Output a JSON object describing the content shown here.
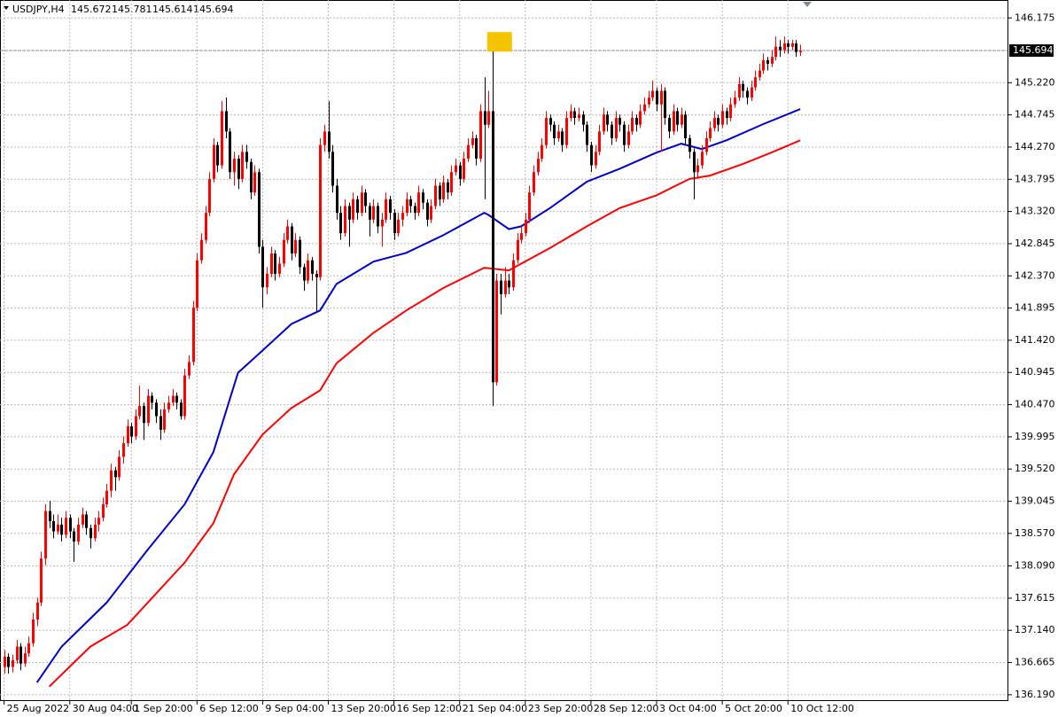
{
  "chart_data": {
    "type": "candlestick",
    "symbol": "USDJPY,H4",
    "bull_color": "#ff0000",
    "bear_color": "#000000",
    "grid": true,
    "ylim": [
      136.11,
      146.44
    ],
    "xlim": [
      -1,
      244.5
    ],
    "yticks": [
      146.175,
      {
        "value": 145.22,
        "label": "145.220"
      },
      144.745,
      {
        "value": 144.27,
        "label": "144.270"
      },
      143.795,
      {
        "value": 143.32,
        "label": "143.320"
      },
      142.845,
      {
        "value": 142.37,
        "label": "142.370"
      },
      141.895,
      {
        "value": 141.42,
        "label": "141.420"
      },
      140.945,
      {
        "value": 140.47,
        "label": "140.470"
      },
      139.995,
      {
        "value": 139.52,
        "label": "139.520"
      },
      139.045,
      {
        "value": 138.57,
        "label": "138.570"
      },
      {
        "value": 138.09,
        "label": "138.090"
      },
      137.615,
      {
        "value": 137.14,
        "label": "137.140"
      },
      136.665,
      {
        "value": 136.19,
        "label": "136.190"
      }
    ],
    "xticks": [
      {
        "value": 0,
        "label": "25 Aug 2022"
      },
      {
        "value": 16,
        "label": "30 Aug 04:00"
      },
      {
        "value": 31,
        "label": "1 Sep 20:00"
      },
      {
        "value": 47,
        "label": "6 Sep 12:00"
      },
      {
        "value": 63,
        "label": "9 Sep 04:00"
      },
      {
        "value": 79,
        "label": "13 Sep 20:00"
      },
      {
        "value": 95,
        "label": "16 Sep 12:00"
      },
      {
        "value": 111,
        "label": "21 Sep 04:00"
      },
      {
        "value": 127,
        "label": "23 Sep 20:00"
      },
      {
        "value": 143,
        "label": "28 Sep 12:00"
      },
      {
        "value": 159,
        "label": "3 Oct 04:00"
      },
      {
        "value": 175,
        "label": "5 Oct 20:00"
      },
      {
        "value": 191,
        "label": "10 Oct 12:00"
      }
    ],
    "current_price": 145.694,
    "ohlc": [
      [
        136.6,
        136.85,
        136.5,
        136.75
      ],
      [
        136.75,
        136.8,
        136.5,
        136.6
      ],
      [
        136.6,
        136.78,
        136.52,
        136.7
      ],
      [
        136.7,
        137.0,
        136.65,
        136.9
      ],
      [
        136.9,
        136.95,
        136.55,
        136.65
      ],
      [
        136.65,
        136.9,
        136.6,
        136.8
      ],
      [
        136.8,
        137.05,
        136.75,
        136.95
      ],
      [
        136.95,
        137.4,
        136.9,
        137.3
      ],
      [
        137.3,
        137.62,
        137.2,
        137.55
      ],
      [
        137.55,
        138.3,
        137.5,
        138.2
      ],
      [
        138.2,
        139.0,
        138.1,
        138.9
      ],
      [
        138.9,
        139.05,
        138.65,
        138.75
      ],
      [
        138.75,
        138.85,
        138.5,
        138.6
      ],
      [
        138.6,
        138.85,
        138.55,
        138.7
      ],
      [
        138.7,
        138.8,
        138.45,
        138.55
      ],
      [
        138.55,
        138.9,
        138.5,
        138.8
      ],
      [
        138.8,
        138.85,
        138.5,
        138.6
      ],
      [
        138.6,
        138.65,
        138.15,
        138.45
      ],
      [
        138.45,
        138.8,
        138.4,
        138.7
      ],
      [
        138.7,
        138.95,
        138.65,
        138.85
      ],
      [
        138.85,
        138.9,
        138.55,
        138.65
      ],
      [
        138.65,
        138.7,
        138.35,
        138.5
      ],
      [
        138.5,
        138.8,
        138.45,
        138.7
      ],
      [
        138.7,
        138.9,
        138.6,
        138.8
      ],
      [
        138.8,
        139.1,
        138.75,
        139.0
      ],
      [
        139.0,
        139.3,
        138.95,
        139.2
      ],
      [
        139.2,
        139.6,
        139.1,
        139.5
      ],
      [
        139.5,
        139.55,
        139.2,
        139.4
      ],
      [
        139.4,
        139.8,
        139.35,
        139.7
      ],
      [
        139.7,
        140.0,
        139.6,
        139.9
      ],
      [
        139.9,
        140.25,
        139.85,
        140.15
      ],
      [
        140.15,
        140.2,
        139.9,
        140.0
      ],
      [
        140.0,
        140.4,
        139.95,
        140.3
      ],
      [
        140.3,
        140.75,
        140.25,
        140.45
      ],
      [
        140.45,
        140.5,
        139.95,
        140.2
      ],
      [
        140.2,
        140.7,
        140.15,
        140.6
      ],
      [
        140.6,
        140.65,
        140.4,
        140.5
      ],
      [
        140.5,
        140.55,
        140.2,
        140.3
      ],
      [
        140.3,
        140.4,
        139.95,
        140.1
      ],
      [
        140.1,
        140.5,
        140.05,
        140.4
      ],
      [
        140.4,
        140.6,
        140.35,
        140.5
      ],
      [
        140.5,
        140.7,
        140.45,
        140.6
      ],
      [
        140.6,
        140.65,
        140.4,
        140.5
      ],
      [
        140.5,
        140.55,
        140.25,
        140.3
      ],
      [
        140.3,
        141.0,
        140.25,
        140.9
      ],
      [
        140.9,
        141.2,
        140.85,
        141.1
      ],
      [
        141.1,
        142.0,
        141.05,
        141.9
      ],
      [
        141.9,
        142.7,
        141.85,
        142.6
      ],
      [
        142.6,
        143.0,
        142.55,
        142.9
      ],
      [
        142.9,
        143.4,
        142.85,
        143.3
      ],
      [
        143.3,
        143.9,
        143.25,
        143.8
      ],
      [
        143.8,
        144.4,
        143.75,
        144.3
      ],
      [
        144.3,
        144.35,
        143.9,
        144.0
      ],
      [
        144.0,
        144.95,
        143.95,
        144.8
      ],
      [
        144.8,
        145.0,
        144.4,
        144.5
      ],
      [
        144.5,
        144.55,
        143.8,
        143.9
      ],
      [
        143.9,
        144.2,
        143.7,
        144.1
      ],
      [
        144.1,
        144.15,
        143.65,
        143.8
      ],
      [
        143.8,
        144.3,
        143.75,
        144.2
      ],
      [
        144.2,
        144.3,
        143.95,
        144.05
      ],
      [
        144.05,
        144.1,
        143.5,
        143.6
      ],
      [
        143.6,
        144.0,
        143.55,
        143.9
      ],
      [
        143.9,
        143.95,
        142.7,
        142.8
      ],
      [
        142.8,
        142.9,
        141.9,
        142.2
      ],
      [
        142.2,
        142.5,
        142.1,
        142.4
      ],
      [
        142.4,
        142.8,
        142.35,
        142.7
      ],
      [
        142.7,
        142.75,
        142.3,
        142.4
      ],
      [
        142.4,
        142.65,
        142.35,
        142.55
      ],
      [
        142.55,
        143.0,
        142.5,
        142.9
      ],
      [
        142.9,
        143.2,
        142.85,
        143.1
      ],
      [
        143.1,
        143.15,
        142.6,
        142.7
      ],
      [
        142.7,
        143.0,
        142.65,
        142.9
      ],
      [
        142.9,
        142.95,
        142.4,
        142.5
      ],
      [
        142.5,
        142.55,
        142.15,
        142.3
      ],
      [
        142.3,
        142.7,
        142.25,
        142.6
      ],
      [
        142.6,
        142.65,
        142.3,
        142.4
      ],
      [
        142.4,
        142.45,
        141.85,
        142.35
      ],
      [
        142.35,
        144.4,
        142.3,
        144.3
      ],
      [
        144.3,
        144.6,
        144.2,
        144.5
      ],
      [
        144.5,
        144.95,
        144.1,
        144.2
      ],
      [
        144.2,
        144.3,
        143.6,
        143.7
      ],
      [
        143.7,
        143.8,
        143.2,
        143.3
      ],
      [
        143.3,
        143.4,
        142.9,
        143.0
      ],
      [
        143.0,
        143.5,
        142.95,
        143.4
      ],
      [
        143.4,
        143.45,
        142.8,
        143.2
      ],
      [
        143.2,
        143.6,
        143.15,
        143.5
      ],
      [
        143.5,
        143.55,
        143.2,
        143.3
      ],
      [
        143.3,
        143.7,
        143.25,
        143.6
      ],
      [
        143.6,
        143.65,
        143.3,
        143.4
      ],
      [
        143.4,
        143.45,
        142.95,
        143.2
      ],
      [
        143.2,
        143.5,
        143.15,
        143.4
      ],
      [
        143.4,
        143.45,
        143.0,
        143.1
      ],
      [
        143.1,
        143.3,
        142.8,
        143.2
      ],
      [
        143.2,
        143.6,
        143.15,
        143.5
      ],
      [
        143.5,
        143.55,
        143.2,
        143.3
      ],
      [
        143.3,
        143.35,
        142.9,
        143.0
      ],
      [
        143.0,
        143.3,
        142.95,
        143.2
      ],
      [
        143.2,
        143.4,
        143.1,
        143.3
      ],
      [
        143.3,
        143.6,
        143.25,
        143.5
      ],
      [
        143.5,
        143.55,
        143.3,
        143.4
      ],
      [
        143.4,
        143.45,
        143.2,
        143.3
      ],
      [
        143.3,
        143.7,
        143.25,
        143.6
      ],
      [
        143.6,
        143.65,
        143.35,
        143.45
      ],
      [
        143.45,
        143.5,
        143.1,
        143.2
      ],
      [
        143.2,
        143.5,
        143.15,
        143.4
      ],
      [
        143.4,
        143.8,
        143.35,
        143.7
      ],
      [
        143.7,
        143.75,
        143.4,
        143.5
      ],
      [
        143.5,
        143.85,
        143.45,
        143.75
      ],
      [
        143.75,
        143.8,
        143.5,
        143.6
      ],
      [
        143.6,
        144.0,
        143.55,
        143.9
      ],
      [
        143.9,
        144.1,
        143.85,
        144.0
      ],
      [
        144.0,
        144.05,
        143.7,
        143.8
      ],
      [
        143.8,
        144.2,
        143.75,
        144.1
      ],
      [
        144.1,
        144.4,
        144.05,
        144.3
      ],
      [
        144.3,
        144.5,
        144.25,
        144.4
      ],
      [
        144.4,
        144.45,
        144.0,
        144.1
      ],
      [
        144.1,
        144.9,
        144.05,
        144.8
      ],
      [
        144.8,
        145.3,
        143.5,
        144.6
      ],
      [
        144.6,
        145.1,
        144.55,
        144.8
      ],
      [
        144.8,
        145.94,
        140.45,
        140.8
      ],
      [
        140.8,
        142.4,
        140.75,
        142.3
      ],
      [
        142.3,
        142.4,
        141.8,
        142.1
      ],
      [
        142.1,
        142.5,
        142.05,
        142.3
      ],
      [
        142.3,
        142.4,
        142.1,
        142.2
      ],
      [
        142.2,
        142.7,
        142.15,
        142.6
      ],
      [
        142.6,
        143.0,
        142.55,
        142.9
      ],
      [
        142.9,
        143.1,
        142.85,
        143.0
      ],
      [
        143.0,
        143.3,
        142.95,
        143.2
      ],
      [
        143.2,
        143.7,
        143.15,
        143.6
      ],
      [
        143.6,
        144.0,
        143.55,
        143.9
      ],
      [
        143.9,
        144.2,
        143.85,
        144.1
      ],
      [
        144.1,
        144.4,
        144.05,
        144.3
      ],
      [
        144.3,
        144.8,
        144.25,
        144.7
      ],
      [
        144.7,
        144.75,
        144.5,
        144.6
      ],
      [
        144.6,
        144.65,
        144.3,
        144.4
      ],
      [
        144.4,
        144.6,
        144.35,
        144.5
      ],
      [
        144.5,
        144.55,
        144.2,
        144.3
      ],
      [
        144.3,
        144.8,
        144.25,
        144.7
      ],
      [
        144.7,
        144.9,
        144.65,
        144.8
      ],
      [
        144.8,
        144.85,
        144.6,
        144.7
      ],
      [
        144.7,
        144.85,
        144.65,
        144.75
      ],
      [
        144.75,
        144.8,
        144.5,
        144.6
      ],
      [
        144.6,
        144.65,
        144.2,
        144.3
      ],
      [
        144.3,
        144.35,
        143.9,
        144.0
      ],
      [
        144.0,
        144.3,
        143.95,
        144.2
      ],
      [
        144.2,
        144.6,
        144.15,
        144.5
      ],
      [
        144.5,
        144.85,
        144.45,
        144.75
      ],
      [
        144.75,
        144.8,
        144.5,
        144.6
      ],
      [
        144.6,
        144.65,
        144.3,
        144.4
      ],
      [
        144.4,
        144.8,
        144.35,
        144.7
      ],
      [
        144.7,
        144.75,
        144.5,
        144.6
      ],
      [
        144.6,
        144.65,
        144.2,
        144.3
      ],
      [
        144.3,
        144.6,
        144.25,
        144.5
      ],
      [
        144.5,
        144.8,
        144.45,
        144.7
      ],
      [
        144.7,
        144.75,
        144.5,
        144.6
      ],
      [
        144.6,
        144.9,
        144.55,
        144.8
      ],
      [
        144.8,
        145.0,
        144.75,
        144.9
      ],
      [
        144.9,
        145.1,
        144.85,
        145.0
      ],
      [
        145.0,
        145.25,
        144.95,
        145.1
      ],
      [
        145.1,
        145.15,
        144.8,
        144.9
      ],
      [
        144.9,
        145.2,
        144.2,
        145.1
      ],
      [
        145.1,
        145.15,
        144.6,
        144.7
      ],
      [
        144.7,
        144.75,
        144.4,
        144.5
      ],
      [
        144.5,
        144.9,
        144.45,
        144.8
      ],
      [
        144.8,
        144.85,
        144.5,
        144.6
      ],
      [
        144.6,
        144.85,
        144.55,
        144.75
      ],
      [
        144.75,
        144.8,
        144.3,
        144.4
      ],
      [
        144.4,
        144.45,
        144.1,
        144.2
      ],
      [
        144.2,
        144.25,
        143.5,
        143.9
      ],
      [
        143.9,
        144.1,
        143.8,
        144.0
      ],
      [
        144.0,
        144.3,
        143.95,
        144.2
      ],
      [
        144.2,
        144.5,
        144.15,
        144.4
      ],
      [
        144.4,
        144.65,
        144.35,
        144.55
      ],
      [
        144.55,
        144.8,
        144.5,
        144.7
      ],
      [
        144.7,
        144.75,
        144.5,
        144.6
      ],
      [
        144.6,
        144.9,
        144.55,
        144.8
      ],
      [
        144.8,
        144.85,
        144.6,
        144.7
      ],
      [
        144.7,
        145.0,
        144.65,
        144.9
      ],
      [
        144.9,
        145.1,
        144.85,
        145.0
      ],
      [
        145.0,
        145.3,
        144.95,
        145.2
      ],
      [
        145.2,
        145.25,
        145.0,
        145.1
      ],
      [
        145.1,
        145.15,
        144.9,
        145.0
      ],
      [
        145.0,
        145.25,
        144.95,
        145.15
      ],
      [
        145.15,
        145.4,
        145.1,
        145.3
      ],
      [
        145.3,
        145.5,
        145.25,
        145.4
      ],
      [
        145.4,
        145.65,
        145.35,
        145.55
      ],
      [
        145.55,
        145.6,
        145.4,
        145.5
      ],
      [
        145.5,
        145.7,
        145.45,
        145.6
      ],
      [
        145.6,
        145.9,
        145.55,
        145.75
      ],
      [
        145.75,
        145.85,
        145.6,
        145.7
      ],
      [
        145.7,
        145.9,
        145.65,
        145.8
      ],
      [
        145.8,
        145.85,
        145.65,
        145.75
      ],
      [
        145.75,
        145.85,
        145.7,
        145.8
      ],
      [
        145.8,
        145.85,
        145.6,
        145.672
      ],
      [
        145.672,
        145.781,
        145.614,
        145.694
      ]
    ],
    "lines": [
      {
        "color": "#0000c8",
        "x": [
          8,
          14,
          25,
          35,
          44,
          51,
          57,
          63,
          70,
          77,
          81,
          90,
          98,
          107,
          117,
          118,
          123,
          126,
          133,
          142,
          150,
          159,
          165,
          170,
          176,
          185,
          194
        ],
        "values": [
          136.37,
          136.9,
          137.55,
          138.33,
          139.0,
          139.77,
          140.94,
          141.27,
          141.66,
          141.86,
          142.25,
          142.58,
          142.71,
          142.97,
          143.3,
          143.27,
          143.06,
          143.1,
          143.37,
          143.76,
          143.95,
          144.19,
          144.32,
          144.24,
          144.37,
          144.61,
          144.83
        ]
      },
      {
        "color": "#ff0000",
        "x": [
          11,
          21,
          30,
          44,
          51,
          56,
          63,
          70,
          77,
          81,
          90,
          98,
          107,
          117,
          123,
          126,
          133,
          142,
          150,
          159,
          167,
          172,
          180,
          187,
          194
        ],
        "values": [
          136.31,
          136.9,
          137.22,
          138.14,
          138.72,
          139.44,
          140.03,
          140.42,
          140.68,
          141.08,
          141.53,
          141.86,
          142.19,
          142.49,
          142.45,
          142.55,
          142.78,
          143.1,
          143.37,
          143.56,
          143.8,
          143.85,
          144.02,
          144.19,
          144.37
        ]
      }
    ]
  }
}
